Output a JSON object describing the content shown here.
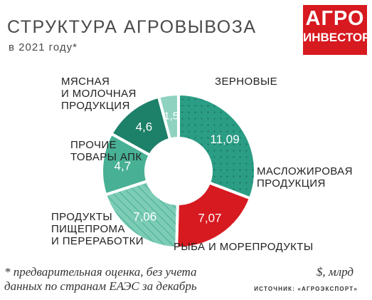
{
  "title": "СТРУКТУРА АГРОВЫВОЗА",
  "subtitle": "в 2021 году*",
  "logo": {
    "line1": "АГРО",
    "line2": "ИНВЕСТОР"
  },
  "footnote": {
    "line1": "* предварительная оценка, без учета",
    "line2": "данных по странам ЕАЭС за декабрь"
  },
  "unit": "$, млрд",
  "source": "ИСТОЧНИК: «АГРОЭКСПОРТ»",
  "colors": {
    "grain": "#2a9d84",
    "oil": "#d71920",
    "fish": "#7cccb6",
    "food": "#48b094",
    "other": "#1d8068",
    "meat": "#8fd2c0"
  },
  "chart_data": {
    "type": "pie",
    "donut": true,
    "title": "СТРУКТУРА АГРОВЫВОЗА",
    "subtitle": "в 2021 году*",
    "unit": "$, млрд",
    "slices": [
      {
        "key": "grain",
        "label": [
          "ЗЕРНОВЫЕ"
        ],
        "value": 11.09,
        "value_text": "11,09",
        "color": "#2a9d84",
        "pattern": "dots"
      },
      {
        "key": "oil",
        "label": [
          "МАСЛОЖИРОВАЯ",
          "ПРОДУКЦИЯ"
        ],
        "value": 7.07,
        "value_text": "7,07",
        "color": "#d71920",
        "pattern": "none"
      },
      {
        "key": "fish",
        "label": [
          "РЫБА И МОРЕПРОДУКТЫ"
        ],
        "value": 7.06,
        "value_text": "7,06",
        "color": "#7cccb6",
        "pattern": "hatch"
      },
      {
        "key": "food",
        "label": [
          "ПРОДУКТЫ",
          "ПИЩЕПРОМА",
          "И ПЕРЕРАБОТКИ"
        ],
        "value": 4.7,
        "value_text": "4,7",
        "color": "#48b094",
        "pattern": "none"
      },
      {
        "key": "other",
        "label": [
          "ПРОЧИЕ",
          "ТОВАРЫ АПК"
        ],
        "value": 4.6,
        "value_text": "4,6",
        "color": "#1d8068",
        "pattern": "none"
      },
      {
        "key": "meat",
        "label": [
          "МЯСНАЯ",
          "И МОЛОЧНАЯ",
          "ПРОДУКЦИЯ"
        ],
        "value": 1.5,
        "value_text": "1,5",
        "color": "#8fd2c0",
        "pattern": "none"
      }
    ]
  }
}
